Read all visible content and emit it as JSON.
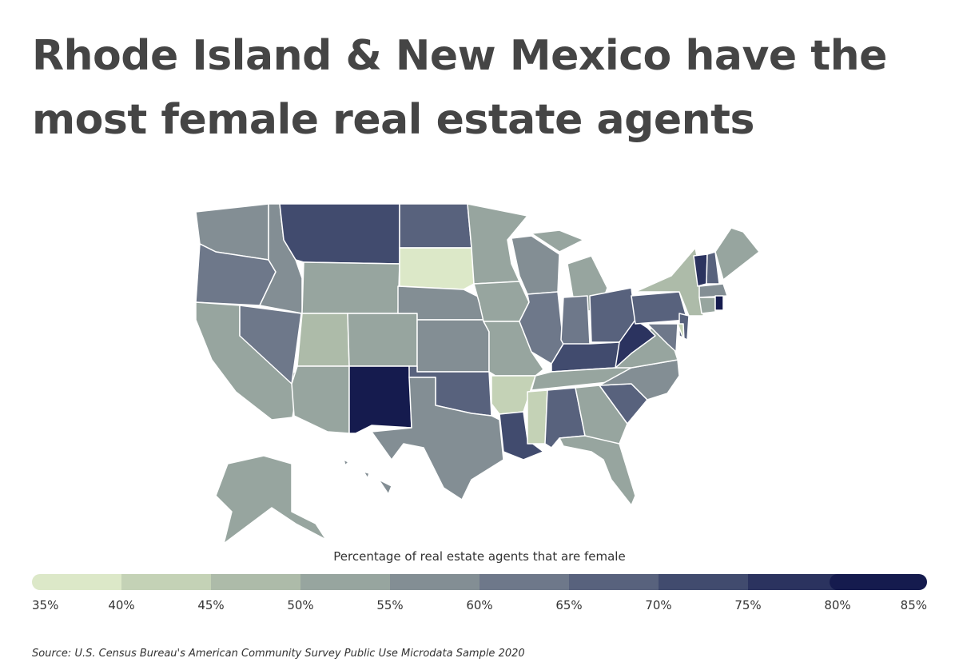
{
  "title": "Rhode Island & New Mexico have the most female real estate agents",
  "map": {
    "region_values": [
      57,
      62,
      52,
      62,
      57,
      73,
      52,
      48,
      52,
      52,
      84,
      68,
      38,
      57,
      58,
      68,
      58,
      50,
      50,
      52,
      43,
      70,
      55,
      63,
      52,
      63,
      67,
      73,
      50,
      42,
      68,
      52,
      52,
      67,
      55,
      52,
      78,
      65,
      48,
      67,
      60,
      42,
      76,
      65,
      53,
      57,
      52,
      84,
      52,
      57
    ],
    "legend_title": "Percentage of real estate agents that are female",
    "legend_ticks": [
      {
        "value": 35,
        "label": "35%"
      },
      {
        "value": 40,
        "label": "40%"
      },
      {
        "value": 45,
        "label": "45%"
      },
      {
        "value": 50,
        "label": "50%"
      },
      {
        "value": 55,
        "label": "55%"
      },
      {
        "value": 60,
        "label": "60%"
      },
      {
        "value": 65,
        "label": "65%"
      },
      {
        "value": 70,
        "label": "70%"
      },
      {
        "value": 75,
        "label": "75%"
      },
      {
        "value": 80,
        "label": "80%"
      },
      {
        "value": 85,
        "label": "85%"
      }
    ],
    "legend_colors": [
      "#dce8c8",
      "#c4d2b6",
      "#adbba9",
      "#97a59f",
      "#838e94",
      "#6e788a",
      "#58627d",
      "#414b6e",
      "#2b335f",
      "#151b4e"
    ]
  },
  "source": "Source:  U.S. Census Bureau's American Community Survey Public Use Microdata Sample 2020"
}
